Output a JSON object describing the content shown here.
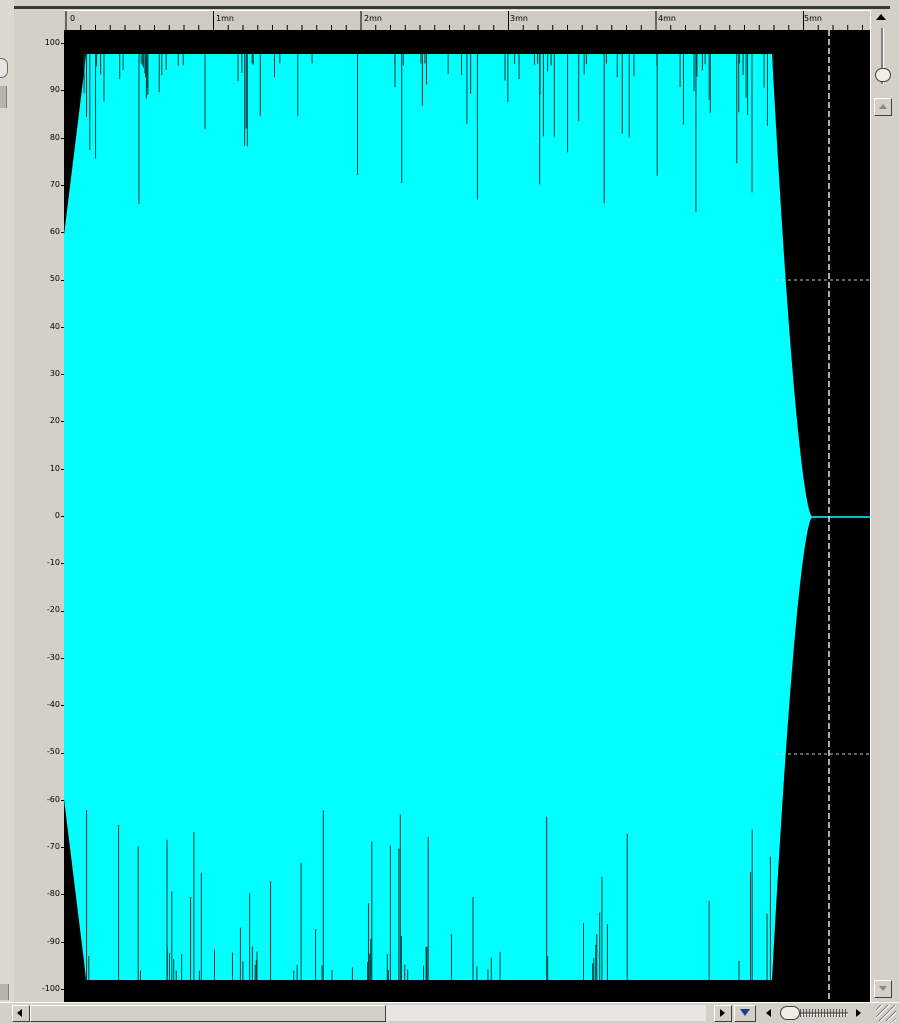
{
  "ruler": {
    "labels": [
      "0",
      "1mn",
      "2mn",
      "3mn",
      "4mn",
      "5mn"
    ]
  },
  "axis": {
    "ticks": [
      "100",
      "90",
      "80",
      "70",
      "60",
      "50",
      "40",
      "30",
      "20",
      "10",
      "0",
      "-10",
      "-20",
      "-30",
      "-40",
      "-50",
      "-60",
      "-70",
      "-80",
      "-90",
      "-100"
    ]
  },
  "colors": {
    "waveform": "#00ffff",
    "background": "#000000",
    "chrome": "#d4d0c8"
  },
  "icons": {
    "scroll_up": "up-arrow-icon",
    "scroll_left": "left-arrow-icon",
    "play": "play-icon",
    "dropdown": "chevron-down-icon",
    "zoom_in": "zoom-in-icon",
    "zoom_out": "zoom-out-icon"
  }
}
